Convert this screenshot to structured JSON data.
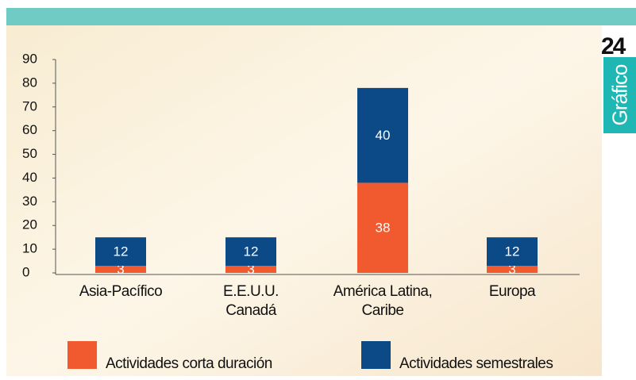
{
  "chart_data": {
    "type": "stacked-bar",
    "categories": [
      "Asia-Pacífico",
      "E.E.U.U.\nCanadá",
      "América Latina,\nCaribe",
      "Europa"
    ],
    "series": [
      {
        "name": "Actividades corta duración",
        "color": "#f05a2e",
        "values": [
          3,
          3,
          38,
          3
        ]
      },
      {
        "name": "Actividades semestrales",
        "color": "#0b4a87",
        "values": [
          12,
          12,
          40,
          12
        ]
      }
    ],
    "ylim": [
      0,
      90
    ],
    "yticks": [
      0,
      10,
      20,
      30,
      40,
      50,
      60,
      70,
      80,
      90
    ],
    "grid": false
  },
  "badge": {
    "number": "24",
    "label": "Gráfico"
  }
}
